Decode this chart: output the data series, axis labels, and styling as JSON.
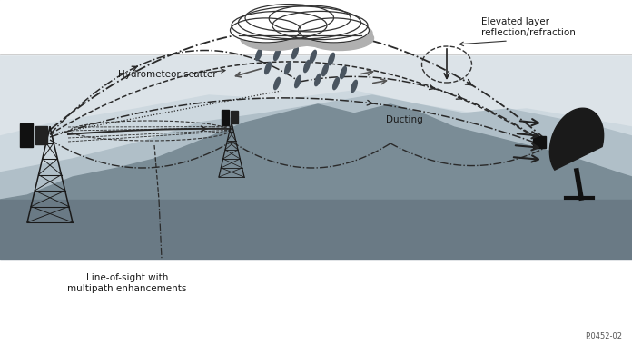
{
  "background_white": "#ffffff",
  "background_scene": "#dce3e8",
  "ground_dark": "#6a7a85",
  "mountain_mid": "#9aaab5",
  "mountain_light": "#bfcdd5",
  "mountain_lighter": "#d0dae0",
  "line_color": "#2a2a2a",
  "text_color": "#1a1a1a",
  "label_hydrometeor": "Hydrometeor scatter",
  "label_elevated": "Elevated layer\nreflection/refraction",
  "label_ducting": "Ducting",
  "label_los": "Line-of-sight with\nmultipath enhancements",
  "label_ref": "P.0452-02",
  "fig_width": 6.96,
  "fig_height": 3.9
}
